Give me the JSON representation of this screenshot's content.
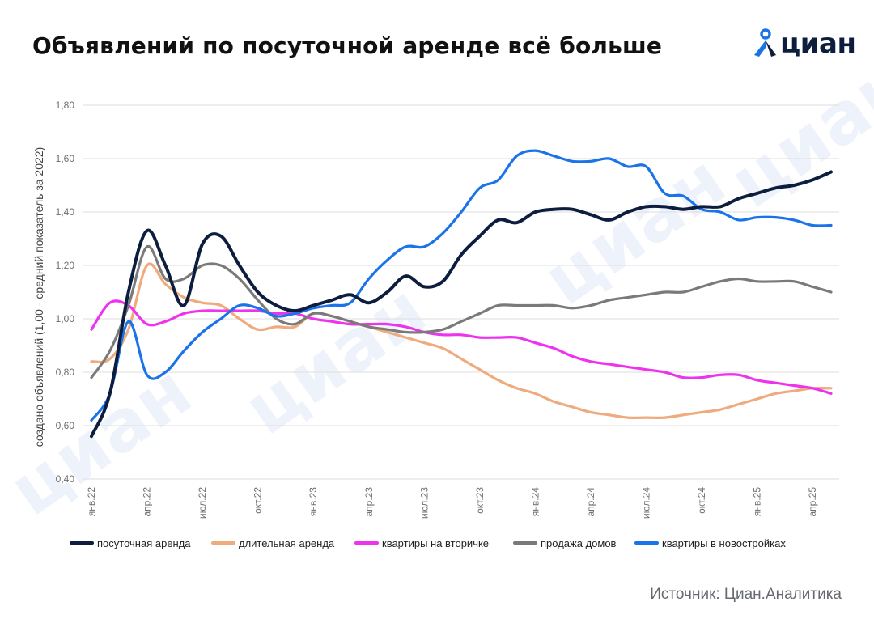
{
  "title": "Объявлений по посуточной аренде всё больше",
  "brand": "циан",
  "source": "Источник: Циан.Аналитика",
  "colors": {
    "daily_rent": "#0c1d3d",
    "long_rent": "#efaa7e",
    "secondary": "#ee33ee",
    "houses": "#7a7a7a",
    "new_builds": "#1a73e8",
    "brand_blue": "#1a73e8",
    "grid": "#dddddd"
  },
  "chart_data": {
    "type": "line",
    "title": "Объявлений по посуточной аренде всё больше",
    "xlabel": "",
    "ylabel": "создано объявлений (1,00 - средний показатель за 2022)",
    "ylim": [
      0.4,
      1.8
    ],
    "yticks": [
      "0,40",
      "0,60",
      "0,80",
      "1,00",
      "1,20",
      "1,40",
      "1,60",
      "1,80"
    ],
    "x_tick_labels": [
      {
        "month_index": 0,
        "label": "янв.22"
      },
      {
        "month_index": 3,
        "label": "апр.22"
      },
      {
        "month_index": 6,
        "label": "июл.22"
      },
      {
        "month_index": 9,
        "label": "окт.22"
      },
      {
        "month_index": 12,
        "label": "янв.23"
      },
      {
        "month_index": 15,
        "label": "апр.23"
      },
      {
        "month_index": 18,
        "label": "июл.23"
      },
      {
        "month_index": 21,
        "label": "окт.23"
      },
      {
        "month_index": 24,
        "label": "янв.24"
      },
      {
        "month_index": 27,
        "label": "апр.24"
      },
      {
        "month_index": 30,
        "label": "июл.24"
      },
      {
        "month_index": 33,
        "label": "окт.24"
      },
      {
        "month_index": 36,
        "label": "янв.25"
      },
      {
        "month_index": 39,
        "label": "апр.25"
      }
    ],
    "series": [
      {
        "key": "daily_rent",
        "name": "посуточная аренда",
        "points": [
          [
            0,
            0.56
          ],
          [
            1,
            0.72
          ],
          [
            2,
            1.1
          ],
          [
            3,
            1.33
          ],
          [
            4,
            1.2
          ],
          [
            5,
            1.05
          ],
          [
            6,
            1.28
          ],
          [
            7,
            1.31
          ],
          [
            8,
            1.2
          ],
          [
            9,
            1.1
          ],
          [
            10,
            1.05
          ],
          [
            11,
            1.03
          ],
          [
            12,
            1.05
          ],
          [
            13,
            1.07
          ],
          [
            14,
            1.09
          ],
          [
            15,
            1.06
          ],
          [
            16,
            1.1
          ],
          [
            17,
            1.16
          ],
          [
            18,
            1.12
          ],
          [
            19,
            1.14
          ],
          [
            20,
            1.24
          ],
          [
            21,
            1.31
          ],
          [
            22,
            1.37
          ],
          [
            23,
            1.36
          ],
          [
            24,
            1.4
          ],
          [
            25,
            1.41
          ],
          [
            26,
            1.41
          ],
          [
            27,
            1.39
          ],
          [
            28,
            1.37
          ],
          [
            29,
            1.4
          ],
          [
            30,
            1.42
          ],
          [
            31,
            1.42
          ],
          [
            32,
            1.41
          ],
          [
            33,
            1.42
          ],
          [
            34,
            1.42
          ],
          [
            35,
            1.45
          ],
          [
            36,
            1.47
          ],
          [
            37,
            1.49
          ],
          [
            38,
            1.5
          ],
          [
            39,
            1.52
          ],
          [
            40,
            1.55
          ]
        ]
      },
      {
        "key": "long_rent",
        "name": "длительная аренда",
        "points": [
          [
            0,
            0.84
          ],
          [
            1,
            0.85
          ],
          [
            2,
            0.96
          ],
          [
            3,
            1.2
          ],
          [
            4,
            1.13
          ],
          [
            5,
            1.08
          ],
          [
            6,
            1.06
          ],
          [
            7,
            1.05
          ],
          [
            8,
            1.0
          ],
          [
            9,
            0.96
          ],
          [
            10,
            0.97
          ],
          [
            11,
            0.97
          ],
          [
            12,
            1.02
          ],
          [
            13,
            1.01
          ],
          [
            14,
            0.99
          ],
          [
            15,
            0.97
          ],
          [
            16,
            0.95
          ],
          [
            17,
            0.93
          ],
          [
            18,
            0.91
          ],
          [
            19,
            0.89
          ],
          [
            20,
            0.85
          ],
          [
            21,
            0.81
          ],
          [
            22,
            0.77
          ],
          [
            23,
            0.74
          ],
          [
            24,
            0.72
          ],
          [
            25,
            0.69
          ],
          [
            26,
            0.67
          ],
          [
            27,
            0.65
          ],
          [
            28,
            0.64
          ],
          [
            29,
            0.63
          ],
          [
            30,
            0.63
          ],
          [
            31,
            0.63
          ],
          [
            32,
            0.64
          ],
          [
            33,
            0.65
          ],
          [
            34,
            0.66
          ],
          [
            35,
            0.68
          ],
          [
            36,
            0.7
          ],
          [
            37,
            0.72
          ],
          [
            38,
            0.73
          ],
          [
            39,
            0.74
          ],
          [
            40,
            0.74
          ]
        ]
      },
      {
        "key": "secondary",
        "name": "квартиры на вторичке",
        "points": [
          [
            0,
            0.96
          ],
          [
            1,
            1.06
          ],
          [
            2,
            1.05
          ],
          [
            3,
            0.98
          ],
          [
            4,
            0.99
          ],
          [
            5,
            1.02
          ],
          [
            6,
            1.03
          ],
          [
            7,
            1.03
          ],
          [
            8,
            1.03
          ],
          [
            9,
            1.03
          ],
          [
            10,
            1.02
          ],
          [
            11,
            1.02
          ],
          [
            12,
            1.0
          ],
          [
            13,
            0.99
          ],
          [
            14,
            0.98
          ],
          [
            15,
            0.98
          ],
          [
            16,
            0.98
          ],
          [
            17,
            0.97
          ],
          [
            18,
            0.95
          ],
          [
            19,
            0.94
          ],
          [
            20,
            0.94
          ],
          [
            21,
            0.93
          ],
          [
            22,
            0.93
          ],
          [
            23,
            0.93
          ],
          [
            24,
            0.91
          ],
          [
            25,
            0.89
          ],
          [
            26,
            0.86
          ],
          [
            27,
            0.84
          ],
          [
            28,
            0.83
          ],
          [
            29,
            0.82
          ],
          [
            30,
            0.81
          ],
          [
            31,
            0.8
          ],
          [
            32,
            0.78
          ],
          [
            33,
            0.78
          ],
          [
            34,
            0.79
          ],
          [
            35,
            0.79
          ],
          [
            36,
            0.77
          ],
          [
            37,
            0.76
          ],
          [
            38,
            0.75
          ],
          [
            39,
            0.74
          ],
          [
            40,
            0.72
          ]
        ]
      },
      {
        "key": "houses",
        "name": "продажа домов",
        "points": [
          [
            0,
            0.78
          ],
          [
            1,
            0.88
          ],
          [
            2,
            1.05
          ],
          [
            3,
            1.27
          ],
          [
            4,
            1.15
          ],
          [
            5,
            1.15
          ],
          [
            6,
            1.2
          ],
          [
            7,
            1.2
          ],
          [
            8,
            1.15
          ],
          [
            9,
            1.07
          ],
          [
            10,
            1.0
          ],
          [
            11,
            0.98
          ],
          [
            12,
            1.02
          ],
          [
            13,
            1.01
          ],
          [
            14,
            0.99
          ],
          [
            15,
            0.97
          ],
          [
            16,
            0.96
          ],
          [
            17,
            0.95
          ],
          [
            18,
            0.95
          ],
          [
            19,
            0.96
          ],
          [
            20,
            0.99
          ],
          [
            21,
            1.02
          ],
          [
            22,
            1.05
          ],
          [
            23,
            1.05
          ],
          [
            24,
            1.05
          ],
          [
            25,
            1.05
          ],
          [
            26,
            1.04
          ],
          [
            27,
            1.05
          ],
          [
            28,
            1.07
          ],
          [
            29,
            1.08
          ],
          [
            30,
            1.09
          ],
          [
            31,
            1.1
          ],
          [
            32,
            1.1
          ],
          [
            33,
            1.12
          ],
          [
            34,
            1.14
          ],
          [
            35,
            1.15
          ],
          [
            36,
            1.14
          ],
          [
            37,
            1.14
          ],
          [
            38,
            1.14
          ],
          [
            39,
            1.12
          ],
          [
            40,
            1.1
          ]
        ]
      },
      {
        "key": "new_builds",
        "name": "квартиры в новостройках",
        "points": [
          [
            0,
            0.62
          ],
          [
            1,
            0.72
          ],
          [
            2,
            0.99
          ],
          [
            3,
            0.79
          ],
          [
            4,
            0.8
          ],
          [
            5,
            0.88
          ],
          [
            6,
            0.95
          ],
          [
            7,
            1.0
          ],
          [
            8,
            1.05
          ],
          [
            9,
            1.04
          ],
          [
            10,
            1.01
          ],
          [
            11,
            1.02
          ],
          [
            12,
            1.04
          ],
          [
            13,
            1.05
          ],
          [
            14,
            1.06
          ],
          [
            15,
            1.15
          ],
          [
            16,
            1.22
          ],
          [
            17,
            1.27
          ],
          [
            18,
            1.27
          ],
          [
            19,
            1.32
          ],
          [
            20,
            1.4
          ],
          [
            21,
            1.49
          ],
          [
            22,
            1.52
          ],
          [
            23,
            1.61
          ],
          [
            24,
            1.63
          ],
          [
            25,
            1.61
          ],
          [
            26,
            1.59
          ],
          [
            27,
            1.59
          ],
          [
            28,
            1.6
          ],
          [
            29,
            1.57
          ],
          [
            30,
            1.57
          ],
          [
            31,
            1.47
          ],
          [
            32,
            1.46
          ],
          [
            33,
            1.41
          ],
          [
            34,
            1.4
          ],
          [
            35,
            1.37
          ],
          [
            36,
            1.38
          ],
          [
            37,
            1.38
          ],
          [
            38,
            1.37
          ],
          [
            39,
            1.35
          ],
          [
            40,
            1.35
          ]
        ]
      }
    ],
    "legend": {
      "placement": "bottom",
      "items": [
        {
          "key": "daily_rent",
          "label": "посуточная аренда"
        },
        {
          "key": "long_rent",
          "label": "длительная аренда"
        },
        {
          "key": "secondary",
          "label": "квартиры на вторичке"
        },
        {
          "key": "houses",
          "label": "продажа домов"
        },
        {
          "key": "new_builds",
          "label": "квартиры в новостройках"
        }
      ]
    }
  }
}
